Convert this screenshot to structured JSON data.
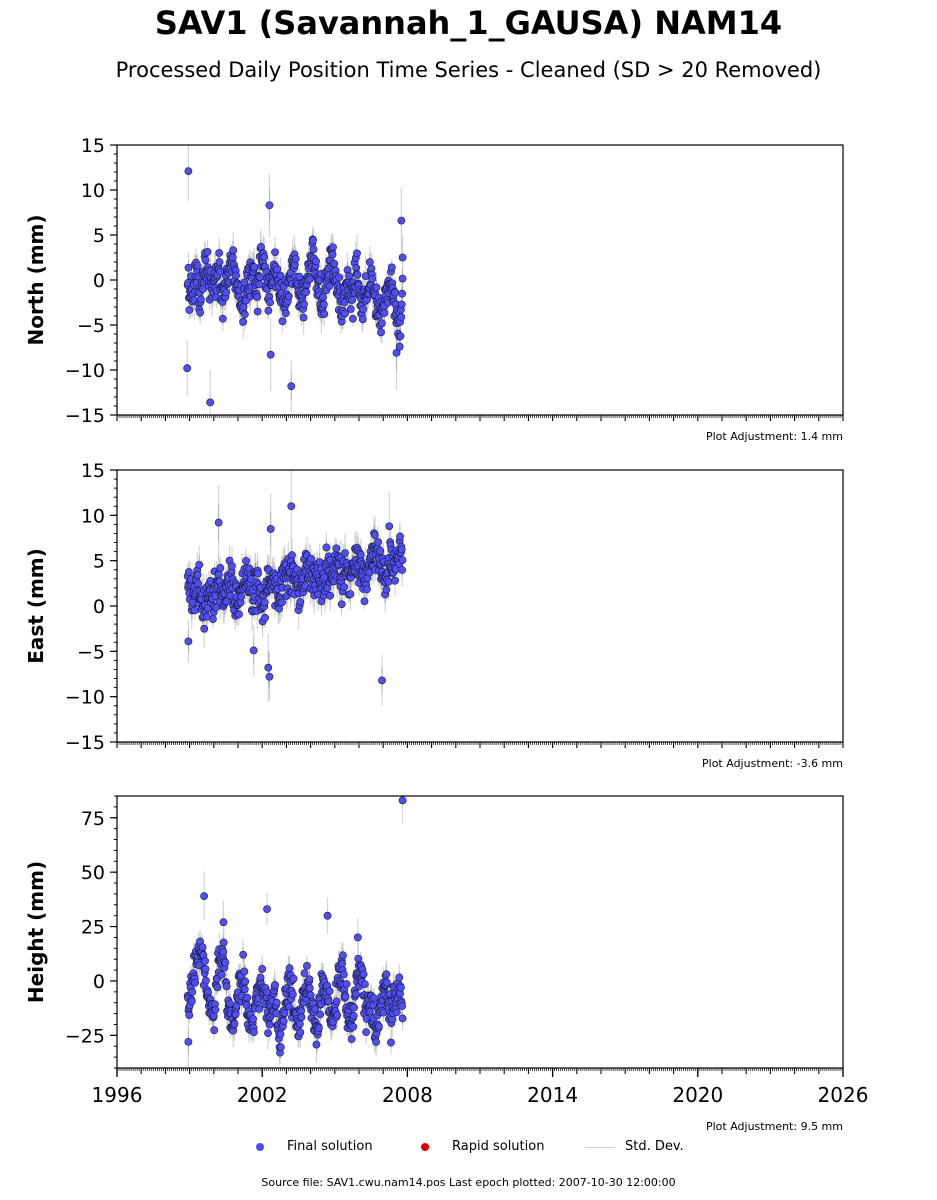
{
  "title": "SAV1 (Savannah_1_GAUSA) NAM14",
  "subtitle": "Processed Daily Position Time Series - Cleaned (SD > 20 Removed)",
  "legend": {
    "final": "Final solution",
    "rapid": "Rapid solution",
    "stddev": "Std. Dev."
  },
  "source_note": "Source file: SAV1.cwu.nam14.pos  Last epoch plotted: 2007-10-30 12:00:00",
  "colors": {
    "final": "#4f4ff5",
    "rapid": "#dd0000",
    "stddev": "#cccccc"
  },
  "chart_data": [
    {
      "type": "scatter",
      "ylabel": "North (mm)",
      "ylim": [
        -15,
        15
      ],
      "yticks": [
        -15,
        -10,
        -5,
        0,
        5,
        10,
        15
      ],
      "ytick_labels": [
        "−15",
        "−10",
        "−5",
        "0",
        "5",
        "10",
        "15"
      ],
      "xlim": [
        1996,
        2026
      ],
      "adjustment": "Plot Adjustment: 1.4 mm",
      "series": [
        {
          "name": "Final solution",
          "x": [
            1998.92,
            1999.0,
            1999.15,
            1999.3,
            1999.45,
            1999.6,
            1999.8,
            2000.0,
            2000.2,
            2000.4,
            2000.6,
            2000.8,
            2001.0,
            2001.2,
            2001.4,
            2001.6,
            2001.8,
            2002.0,
            2002.2,
            2002.35,
            2002.5,
            2002.7,
            2002.9,
            2003.1,
            2003.3,
            2003.5,
            2003.7,
            2003.9,
            2004.1,
            2004.3,
            2004.5,
            2004.7,
            2004.9,
            2005.1,
            2005.3,
            2005.5,
            2005.7,
            2005.9,
            2006.1,
            2006.3,
            2006.5,
            2006.7,
            2006.9,
            2007.1,
            2007.3,
            2007.5,
            2007.7,
            2007.8
          ],
          "y": [
            0.5,
            -2.0,
            -1.5,
            1.0,
            -3.0,
            2.0,
            0.0,
            -1.0,
            1.5,
            -2.5,
            0.5,
            2.0,
            -1.0,
            -3.5,
            0.0,
            1.0,
            -2.0,
            3.0,
            -0.5,
            -2.0,
            1.5,
            -1.0,
            -3.0,
            0.0,
            2.0,
            -1.5,
            -3.0,
            1.0,
            3.5,
            -0.5,
            -2.5,
            0.5,
            2.5,
            -1.0,
            -4.0,
            0.0,
            -2.0,
            1.0,
            -3.5,
            -1.5,
            0.5,
            -2.5,
            -4.5,
            -1.0,
            0.0,
            -3.0,
            -5.5,
            -1.5
          ]
        }
      ],
      "outliers": {
        "x": [
          1998.95,
          1998.9,
          1999.85,
          2002.3,
          2002.35,
          2003.2,
          2007.75,
          2007.55,
          2007.8
        ],
        "y": [
          12.1,
          -9.8,
          -13.6,
          8.3,
          -8.3,
          -11.8,
          6.6,
          -8.1,
          2.5
        ]
      }
    },
    {
      "type": "scatter",
      "ylabel": "East (mm)",
      "ylim": [
        -15,
        15
      ],
      "yticks": [
        -15,
        -10,
        -5,
        0,
        5,
        10,
        15
      ],
      "ytick_labels": [
        "−15",
        "−10",
        "−5",
        "0",
        "5",
        "10",
        "15"
      ],
      "xlim": [
        1996,
        2026
      ],
      "adjustment": "Plot Adjustment: -3.6 mm",
      "series": [
        {
          "name": "Final solution",
          "x": [
            1998.92,
            1999.0,
            1999.15,
            1999.3,
            1999.45,
            1999.6,
            1999.8,
            2000.0,
            2000.2,
            2000.4,
            2000.6,
            2000.8,
            2001.0,
            2001.2,
            2001.4,
            2001.6,
            2001.8,
            2002.0,
            2002.2,
            2002.35,
            2002.5,
            2002.7,
            2002.9,
            2003.1,
            2003.3,
            2003.5,
            2003.7,
            2003.9,
            2004.1,
            2004.3,
            2004.5,
            2004.7,
            2004.9,
            2005.1,
            2005.3,
            2005.5,
            2005.7,
            2005.9,
            2006.1,
            2006.3,
            2006.5,
            2006.7,
            2006.9,
            2007.1,
            2007.3,
            2007.5,
            2007.7,
            2007.8
          ],
          "y": [
            1.0,
            2.5,
            0.0,
            3.0,
            1.5,
            -0.5,
            2.0,
            0.5,
            2.5,
            1.0,
            3.0,
            1.5,
            0.0,
            2.0,
            3.5,
            1.0,
            2.5,
            0.0,
            1.5,
            3.0,
            2.0,
            0.5,
            3.5,
            2.5,
            4.0,
            2.0,
            3.0,
            4.5,
            2.5,
            3.5,
            1.5,
            4.0,
            3.0,
            5.0,
            2.5,
            4.5,
            3.5,
            5.5,
            4.0,
            2.5,
            5.0,
            6.0,
            4.5,
            3.0,
            5.5,
            4.0,
            6.0,
            4.5
          ]
        }
      ],
      "outliers": {
        "x": [
          1998.95,
          2000.2,
          2001.65,
          2002.25,
          2002.3,
          2002.35,
          2003.2,
          2006.95,
          2007.25
        ],
        "y": [
          -3.9,
          9.2,
          -4.9,
          -6.8,
          -7.8,
          8.5,
          11.0,
          -8.2,
          8.8
        ]
      }
    },
    {
      "type": "scatter",
      "ylabel": "Height (mm)",
      "ylim": [
        -40,
        85
      ],
      "yticks": [
        -25,
        0,
        25,
        50,
        75
      ],
      "ytick_labels": [
        "−25",
        "0",
        "25",
        "50",
        "75"
      ],
      "xlim": [
        1996,
        2026
      ],
      "xticks": [
        1996,
        2002,
        2008,
        2014,
        2020,
        2026
      ],
      "xtick_labels": [
        "1996",
        "2002",
        "2008",
        "2014",
        "2020",
        "2026"
      ],
      "adjustment": "Plot Adjustment: 9.5 mm",
      "series": [
        {
          "name": "Final solution",
          "x": [
            1998.92,
            1999.0,
            1999.15,
            1999.3,
            1999.45,
            1999.6,
            1999.8,
            2000.0,
            2000.2,
            2000.4,
            2000.6,
            2000.8,
            2001.0,
            2001.2,
            2001.4,
            2001.6,
            2001.8,
            2002.0,
            2002.2,
            2002.35,
            2002.5,
            2002.7,
            2002.9,
            2003.1,
            2003.3,
            2003.5,
            2003.7,
            2003.9,
            2004.1,
            2004.3,
            2004.5,
            2004.7,
            2004.9,
            2005.1,
            2005.3,
            2005.5,
            2005.7,
            2005.9,
            2006.1,
            2006.3,
            2006.5,
            2006.7,
            2006.9,
            2007.1,
            2007.3,
            2007.5,
            2007.7,
            2007.8
          ],
          "y": [
            -5,
            -12,
            3,
            10,
            15,
            5,
            -8,
            -18,
            8,
            12,
            -10,
            -22,
            -5,
            2,
            -15,
            -25,
            -8,
            0,
            -12,
            -20,
            -5,
            -28,
            -15,
            2,
            -10,
            -22,
            -8,
            0,
            -18,
            -25,
            3,
            -10,
            -20,
            -5,
            8,
            -12,
            -22,
            -2,
            5,
            -15,
            -8,
            -25,
            -12,
            2,
            -18,
            -8,
            0,
            -15
          ]
        }
      ],
      "outliers": {
        "x": [
          1998.95,
          1999.6,
          2000.4,
          2002.2,
          2004.7,
          2005.95,
          2007.8
        ],
        "y": [
          -28,
          39,
          27,
          33,
          30,
          20,
          83
        ]
      }
    }
  ]
}
